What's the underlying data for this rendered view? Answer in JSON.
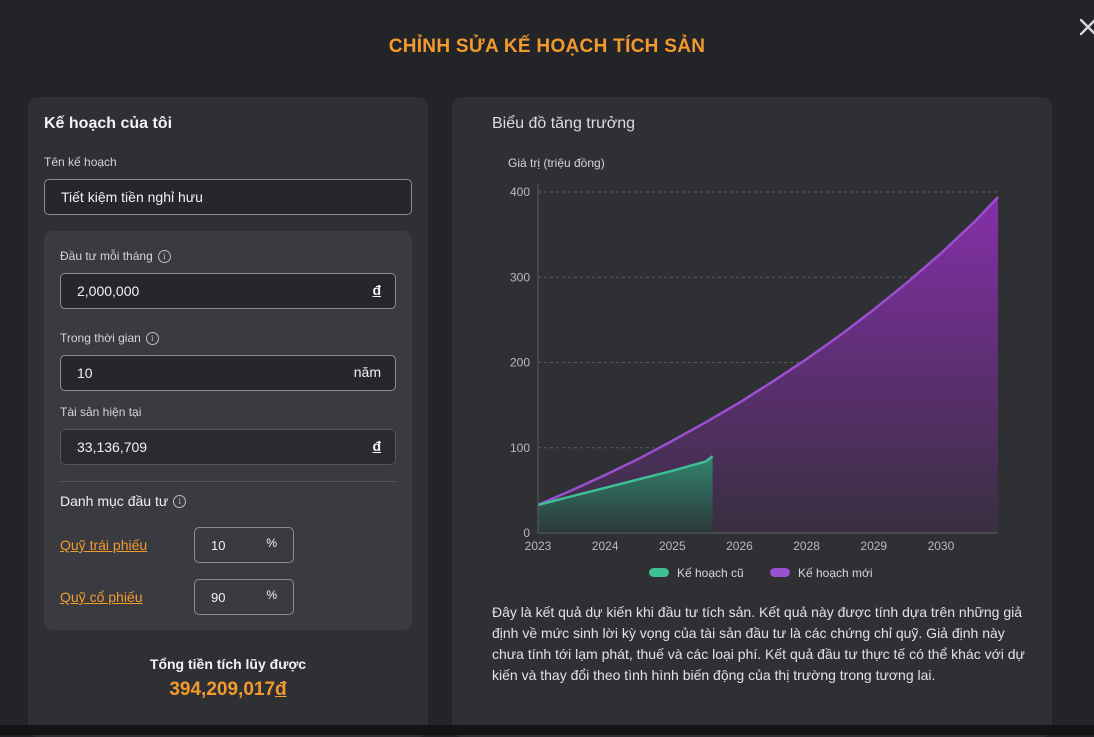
{
  "modal": {
    "title": "CHỈNH SỬA KẾ HOẠCH TÍCH SẢN",
    "close_icon": "close-icon"
  },
  "plan": {
    "heading": "Kế hoạch của tôi",
    "name_label": "Tên kế hoạch",
    "name_value": "Tiết kiệm tiền nghỉ hưu",
    "monthly_label": "Đầu tư mỗi tháng",
    "monthly_value": "2,000,000",
    "monthly_unit": "đ",
    "duration_label": "Trong thời gian",
    "duration_value": "10",
    "duration_unit": "năm",
    "assets_label": "Tài sản hiện tại",
    "assets_value": "33,136,709",
    "assets_unit": "đ",
    "portfolio_label": "Danh mục đầu tư",
    "funds": [
      {
        "name": "Quỹ trái phiếu",
        "percent": "10",
        "unit": "%"
      },
      {
        "name": "Quỹ cổ phiếu",
        "percent": "90",
        "unit": "%"
      }
    ],
    "total_label": "Tổng tiền tích lũy được",
    "total_value": "394,209,017",
    "total_currency": "đ"
  },
  "growth": {
    "heading": "Biểu đồ tăng trưởng",
    "description": "Đây là kết quả dự kiến khi đầu tư tích sản. Kết quả này được tính dựa trên những giả định về mức sinh lời kỳ vọng của tài sản đầu tư là các chứng chỉ quỹ. Giả định này chưa tính tới lạm phát, thuế và các loại phí. Kết quả đầu tư thực tế có thể khác với dự kiến và thay đổi theo tình hình biến động của thị trường trong tương lai."
  },
  "chart_data": {
    "type": "area",
    "ylabel": "Giá trị (triệu đồng)",
    "ylim": [
      0,
      400
    ],
    "y_ticks": [
      0,
      100,
      200,
      300,
      400
    ],
    "x_tick_labels": [
      "2023",
      "2024",
      "2025",
      "2026",
      "2028",
      "2029",
      "2030"
    ],
    "grid": true,
    "legend_position": "bottom",
    "series": [
      {
        "name": "Kế hoạch cũ",
        "color": "#3fbf94",
        "x": [
          0,
          0.5,
          1,
          1.5,
          2,
          2.5,
          2.6
        ],
        "values": [
          33,
          43,
          53,
          63,
          73,
          84,
          90
        ]
      },
      {
        "name": "Kế hoạch mới",
        "color": "#9b4fd1",
        "x": [
          0,
          0.5,
          1,
          1.5,
          2,
          2.5,
          3,
          3.5,
          4,
          4.5,
          5,
          5.5,
          6,
          6.5,
          6.85
        ],
        "values": [
          33,
          50,
          68,
          87,
          108,
          130,
          153,
          178,
          204,
          232,
          262,
          294,
          328,
          365,
          394
        ]
      }
    ]
  }
}
